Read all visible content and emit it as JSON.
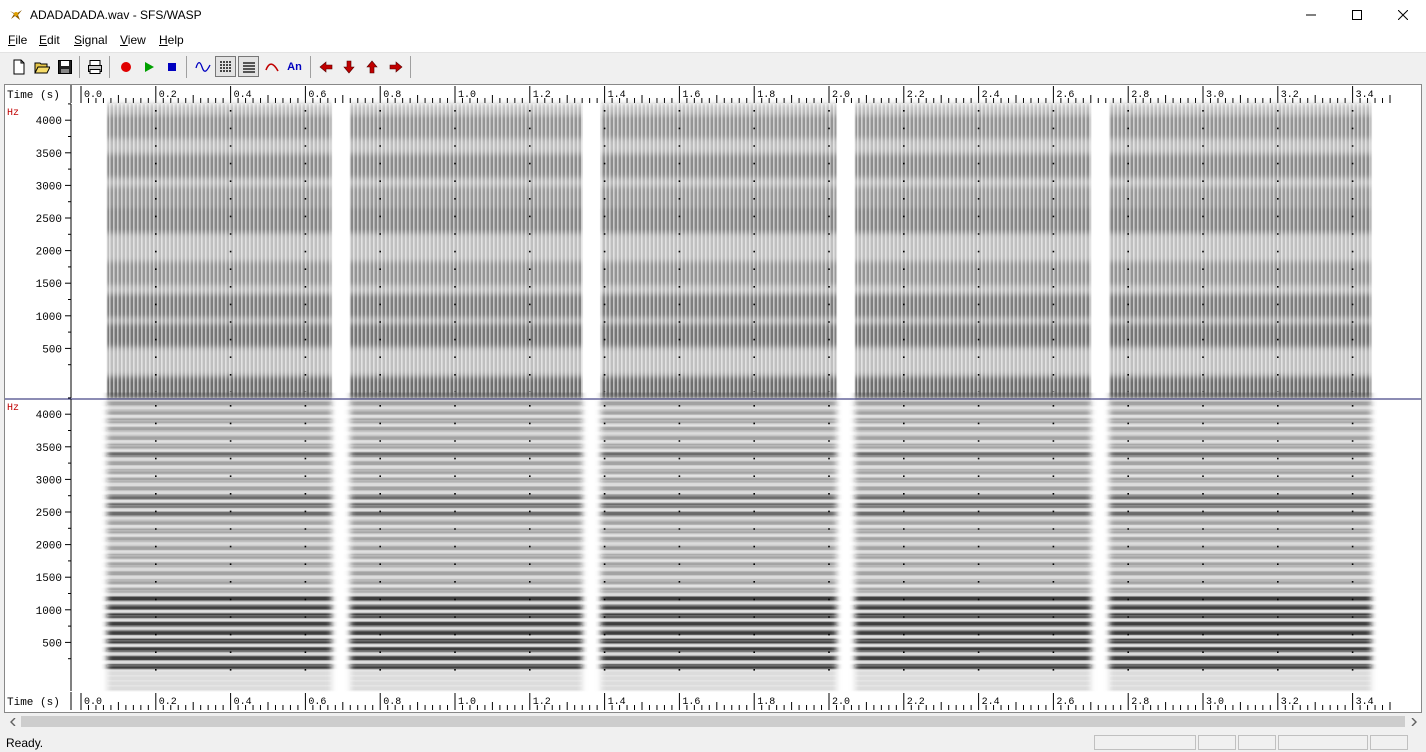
{
  "window": {
    "title": "ADADADADA.wav - SFS/WASP"
  },
  "menu": [
    {
      "accel": "F",
      "rest": "ile"
    },
    {
      "accel": "E",
      "rest": "dit"
    },
    {
      "accel": "S",
      "rest": "ignal"
    },
    {
      "accel": "V",
      "rest": "iew"
    },
    {
      "accel": "H",
      "rest": "elp"
    }
  ],
  "toolbar": [
    {
      "name": "new-icon"
    },
    {
      "name": "open-icon"
    },
    {
      "name": "save-icon"
    },
    {
      "name": "print-icon"
    },
    {
      "name": "record-icon",
      "color": "#e00000"
    },
    {
      "name": "play-icon",
      "color": "#00a000"
    },
    {
      "name": "stop-icon",
      "color": "#0000c0"
    },
    {
      "name": "waveform-icon"
    },
    {
      "name": "wideband-spectrogram-icon",
      "pressed": true
    },
    {
      "name": "narrowband-spectrogram-icon",
      "pressed": true
    },
    {
      "name": "pitch-track-icon"
    },
    {
      "name": "annotation-icon",
      "text": "An"
    },
    {
      "name": "arrow-left-icon",
      "color": "#c00000"
    },
    {
      "name": "arrow-down-icon",
      "color": "#c00000"
    },
    {
      "name": "arrow-up-icon",
      "color": "#c00000"
    },
    {
      "name": "arrow-right-icon",
      "color": "#c00000"
    }
  ],
  "axis": {
    "time_label": "Time (s)",
    "time_ticks": [
      "0.0",
      "0.2",
      "0.4",
      "0.6",
      "0.8",
      "1.0",
      "1.2",
      "1.4",
      "1.6",
      "1.8",
      "2.0",
      "2.2",
      "2.4",
      "2.6",
      "2.8",
      "3.0",
      "3.2",
      "3.4"
    ],
    "freq_label": "Hz",
    "freq_ticks": [
      "500",
      "1000",
      "1500",
      "2000",
      "2500",
      "3000",
      "3500",
      "4000"
    ]
  },
  "spectrograms": {
    "top_type": "wideband",
    "bottom_type": "narrowband",
    "syllable_bursts_s": [
      0.07,
      0.72,
      1.39,
      2.07,
      2.75
    ],
    "signal_end_s": 3.45
  },
  "status": {
    "text": "Ready."
  },
  "colors": {
    "axis_label": "#c00000",
    "spectrogram_dark": "#222222"
  }
}
